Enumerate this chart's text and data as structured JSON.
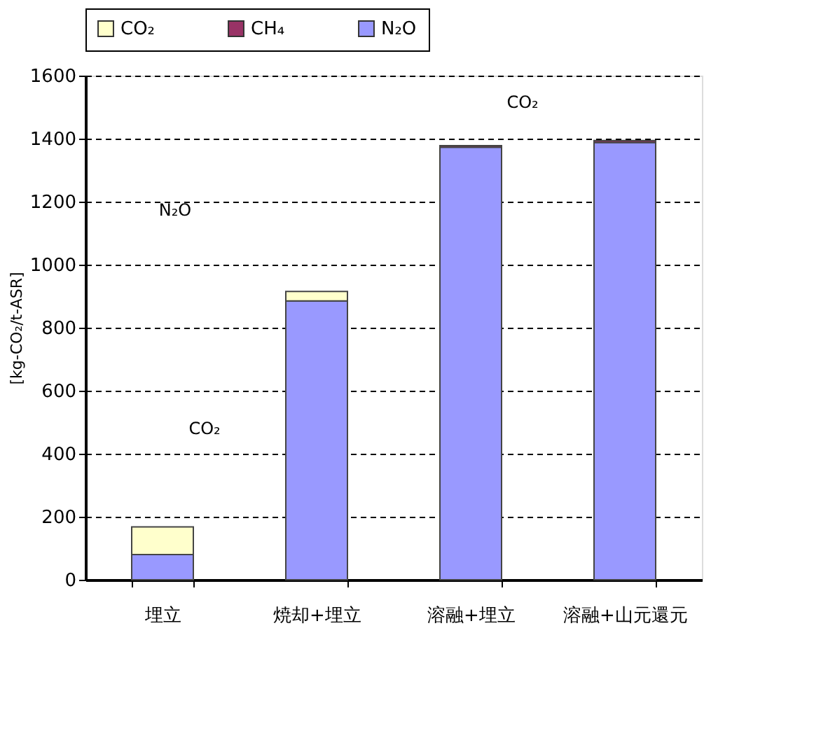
{
  "chart_data": {
    "type": "bar",
    "stacked": true,
    "categories": [
      "埋立",
      "焼却+埋立",
      "溶融+埋立",
      "溶融+山元還元"
    ],
    "series": [
      {
        "name": "N₂O",
        "color": "#9999ff",
        "values": [
          80,
          885,
          1373,
          1388
        ]
      },
      {
        "name": "CH₄",
        "color": "#993366",
        "values": [
          0,
          0,
          5,
          6
        ]
      },
      {
        "name": "CO₂",
        "color": "#ffffcc",
        "values": [
          88,
          30,
          0,
          0
        ]
      }
    ],
    "ylabel": "[kg-CO₂/t-ASR]",
    "ylim": [
      0,
      1600
    ],
    "yticks": [
      0,
      200,
      400,
      600,
      800,
      1000,
      1200,
      1400,
      1600
    ],
    "grid": "y",
    "legend": "top",
    "annotations": [
      "N₂O",
      "CO₂",
      "CO₂"
    ]
  }
}
